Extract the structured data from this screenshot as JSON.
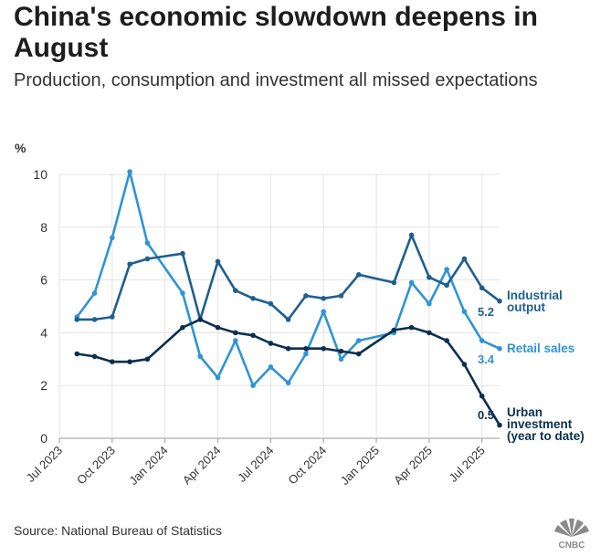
{
  "title": "China's economic slowdown deepens in August",
  "subtitle": "Production, consumption and investment all missed expectations",
  "source": "Source: National Bureau of Statistics",
  "brand": "CNBC",
  "colors": {
    "industrial_output": "#1f5f8f",
    "retail_sales": "#2f94d4",
    "urban_investment": "#0b2f4f",
    "grid": "#e3e3e3",
    "axis": "#999999",
    "text": "#333333"
  },
  "chart_data": {
    "type": "line",
    "ylabel": "%",
    "ylim": [
      0,
      10
    ],
    "yticks": [
      0,
      2,
      4,
      6,
      8,
      10
    ],
    "xlim": [
      "2023-07",
      "2025-08"
    ],
    "xticks": [
      "2023-07",
      "2023-10",
      "2024-01",
      "2024-04",
      "2024-07",
      "2024-10",
      "2025-01",
      "2025-04",
      "2025-07"
    ],
    "xtick_labels": [
      "Jul 2023",
      "Oct 2023",
      "Jan 2024",
      "Apr 2024",
      "Jul 2024",
      "Oct 2024",
      "Jan 2025",
      "Apr 2025",
      "Jul 2025"
    ],
    "grid": true,
    "series": [
      {
        "key": "industrial_output",
        "label_lines": [
          "Industrial",
          "output"
        ],
        "latest_label": "5.2",
        "points": [
          [
            "2023-08",
            4.5
          ],
          [
            "2023-09",
            4.5
          ],
          [
            "2023-10",
            4.6
          ],
          [
            "2023-11",
            6.6
          ],
          [
            "2023-12",
            6.8
          ],
          [
            "2024-02",
            7.0
          ],
          [
            "2024-03",
            4.5
          ],
          [
            "2024-04",
            6.7
          ],
          [
            "2024-05",
            5.6
          ],
          [
            "2024-06",
            5.3
          ],
          [
            "2024-07",
            5.1
          ],
          [
            "2024-08",
            4.5
          ],
          [
            "2024-09",
            5.4
          ],
          [
            "2024-10",
            5.3
          ],
          [
            "2024-11",
            5.4
          ],
          [
            "2024-12",
            6.2
          ],
          [
            "2025-02",
            5.9
          ],
          [
            "2025-03",
            7.7
          ],
          [
            "2025-04",
            6.1
          ],
          [
            "2025-05",
            5.8
          ],
          [
            "2025-06",
            6.8
          ],
          [
            "2025-07",
            5.7
          ],
          [
            "2025-08",
            5.2
          ]
        ]
      },
      {
        "key": "retail_sales",
        "label_lines": [
          "Retail sales"
        ],
        "latest_label": "3.4",
        "points": [
          [
            "2023-08",
            4.6
          ],
          [
            "2023-09",
            5.5
          ],
          [
            "2023-10",
            7.6
          ],
          [
            "2023-11",
            10.1
          ],
          [
            "2023-12",
            7.4
          ],
          [
            "2024-02",
            5.5
          ],
          [
            "2024-03",
            3.1
          ],
          [
            "2024-04",
            2.3
          ],
          [
            "2024-05",
            3.7
          ],
          [
            "2024-06",
            2.0
          ],
          [
            "2024-07",
            2.7
          ],
          [
            "2024-08",
            2.1
          ],
          [
            "2024-09",
            3.2
          ],
          [
            "2024-10",
            4.8
          ],
          [
            "2024-11",
            3.0
          ],
          [
            "2024-12",
            3.7
          ],
          [
            "2025-02",
            4.0
          ],
          [
            "2025-03",
            5.9
          ],
          [
            "2025-04",
            5.1
          ],
          [
            "2025-05",
            6.4
          ],
          [
            "2025-06",
            4.8
          ],
          [
            "2025-07",
            3.7
          ],
          [
            "2025-08",
            3.4
          ]
        ]
      },
      {
        "key": "urban_investment",
        "label_lines": [
          "Urban",
          "investment",
          "(year to date)"
        ],
        "latest_label": "0.5",
        "points": [
          [
            "2023-08",
            3.2
          ],
          [
            "2023-09",
            3.1
          ],
          [
            "2023-10",
            2.9
          ],
          [
            "2023-11",
            2.9
          ],
          [
            "2023-12",
            3.0
          ],
          [
            "2024-02",
            4.2
          ],
          [
            "2024-03",
            4.5
          ],
          [
            "2024-04",
            4.2
          ],
          [
            "2024-05",
            4.0
          ],
          [
            "2024-06",
            3.9
          ],
          [
            "2024-07",
            3.6
          ],
          [
            "2024-08",
            3.4
          ],
          [
            "2024-09",
            3.4
          ],
          [
            "2024-10",
            3.4
          ],
          [
            "2024-11",
            3.3
          ],
          [
            "2024-12",
            3.2
          ],
          [
            "2025-02",
            4.1
          ],
          [
            "2025-03",
            4.2
          ],
          [
            "2025-04",
            4.0
          ],
          [
            "2025-05",
            3.7
          ],
          [
            "2025-06",
            2.8
          ],
          [
            "2025-07",
            1.6
          ],
          [
            "2025-08",
            0.5
          ]
        ]
      }
    ]
  }
}
